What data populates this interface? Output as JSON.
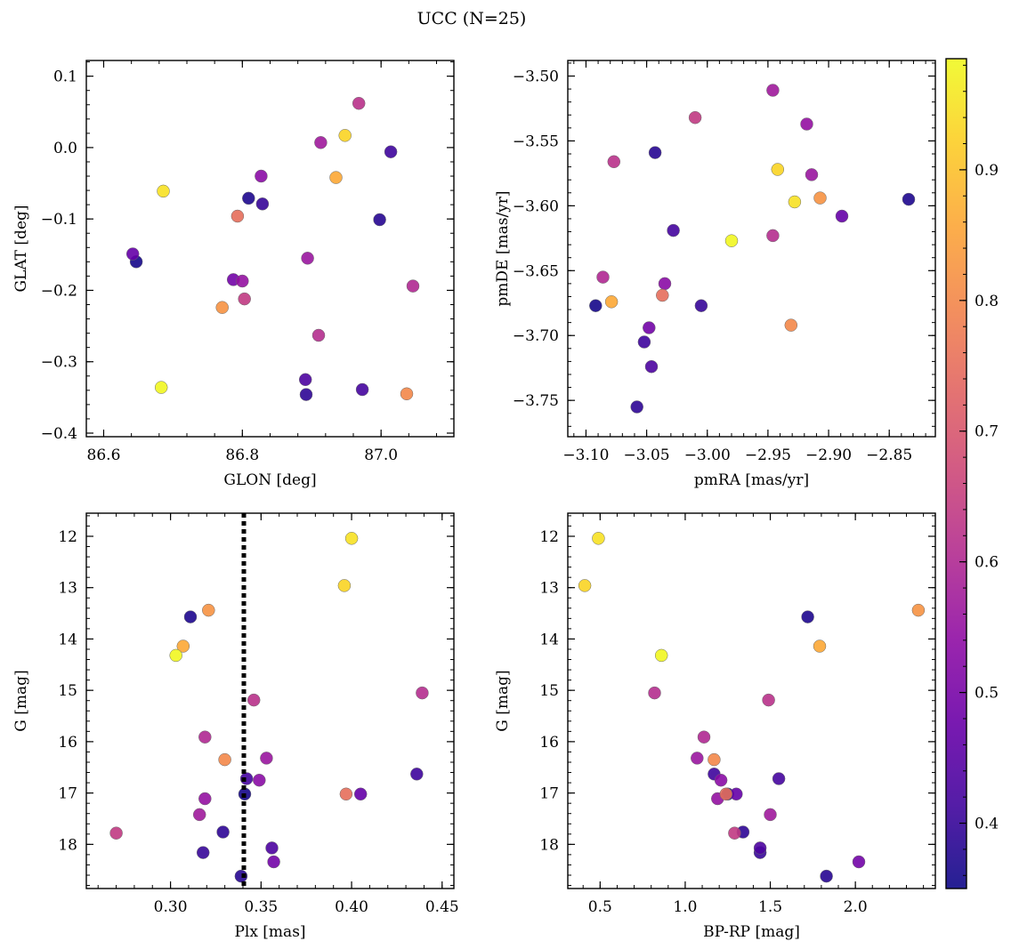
{
  "figure": {
    "title": "UCC (N=25)"
  },
  "colorbar": {
    "range": [
      0.35,
      0.985
    ],
    "ticks": [
      "0.4",
      "0.5",
      "0.6",
      "0.7",
      "0.8",
      "0.9"
    ],
    "tick_values": [
      0.4,
      0.5,
      0.6,
      0.7,
      0.8,
      0.9
    ],
    "colormap": "plasma"
  },
  "stars": [
    {
      "glon": 86.683,
      "glat": -0.336,
      "pmra": -2.98,
      "pmde": -3.627,
      "plx": 0.303,
      "g": 14.32,
      "bprp": 0.86,
      "p": 0.98
    },
    {
      "glon": 86.948,
      "glat": 0.017,
      "pmra": -2.942,
      "pmde": -3.572,
      "plx": 0.396,
      "g": 12.96,
      "bprp": 0.41,
      "p": 0.93
    },
    {
      "glon": 86.686,
      "glat": -0.061,
      "pmra": -2.928,
      "pmde": -3.597,
      "plx": 0.4,
      "g": 12.04,
      "bprp": 0.49,
      "p": 0.95
    },
    {
      "glon": 86.935,
      "glat": -0.042,
      "pmra": -3.079,
      "pmde": -3.674,
      "plx": 0.307,
      "g": 14.14,
      "bprp": 1.79,
      "p": 0.86
    },
    {
      "glon": 86.771,
      "glat": -0.224,
      "pmra": -2.907,
      "pmde": -3.594,
      "plx": 0.321,
      "g": 13.44,
      "bprp": 2.37,
      "p": 0.82
    },
    {
      "glon": 87.037,
      "glat": -0.345,
      "pmra": -2.931,
      "pmde": -3.692,
      "plx": 0.33,
      "g": 16.35,
      "bprp": 1.17,
      "p": 0.8
    },
    {
      "glon": 86.793,
      "glat": -0.096,
      "pmra": -3.037,
      "pmde": -3.669,
      "plx": 0.397,
      "g": 17.02,
      "bprp": 1.24,
      "p": 0.75
    },
    {
      "glon": 86.803,
      "glat": -0.212,
      "pmra": -3.01,
      "pmde": -3.532,
      "plx": 0.27,
      "g": 17.78,
      "bprp": 1.29,
      "p": 0.64
    },
    {
      "glon": 86.968,
      "glat": 0.062,
      "pmra": -3.077,
      "pmde": -3.566,
      "plx": 0.346,
      "g": 15.19,
      "bprp": 1.49,
      "p": 0.62
    },
    {
      "glon": 86.91,
      "glat": -0.263,
      "pmra": -2.946,
      "pmde": -3.623,
      "plx": 0.439,
      "g": 15.05,
      "bprp": 0.82,
      "p": 0.61
    },
    {
      "glon": 87.046,
      "glat": -0.194,
      "pmra": -3.086,
      "pmde": -3.655,
      "plx": 0.319,
      "g": 15.91,
      "bprp": 1.11,
      "p": 0.6
    },
    {
      "glon": 86.913,
      "glat": 0.007,
      "pmra": -2.946,
      "pmde": -3.511,
      "plx": 0.316,
      "g": 17.42,
      "bprp": 1.5,
      "p": 0.57
    },
    {
      "glon": 86.894,
      "glat": -0.155,
      "pmra": -2.914,
      "pmde": -3.576,
      "plx": 0.353,
      "g": 16.32,
      "bprp": 1.07,
      "p": 0.56
    },
    {
      "glon": 86.8,
      "glat": -0.187,
      "pmra": -2.918,
      "pmde": -3.537,
      "plx": 0.319,
      "g": 17.11,
      "bprp": 1.19,
      "p": 0.55
    },
    {
      "glon": 86.827,
      "glat": -0.04,
      "pmra": -3.035,
      "pmde": -3.66,
      "plx": 0.349,
      "g": 16.75,
      "bprp": 1.21,
      "p": 0.53
    },
    {
      "glon": 86.787,
      "glat": -0.185,
      "pmra": -3.048,
      "pmde": -3.694,
      "plx": 0.357,
      "g": 18.34,
      "bprp": 2.02,
      "p": 0.49
    },
    {
      "glon": 86.642,
      "glat": -0.149,
      "pmra": -2.889,
      "pmde": -3.608,
      "plx": 0.405,
      "g": 17.02,
      "bprp": 1.3,
      "p": 0.47
    },
    {
      "glon": 86.891,
      "glat": -0.325,
      "pmra": -3.046,
      "pmde": -3.724,
      "plx": 0.356,
      "g": 18.07,
      "bprp": 1.44,
      "p": 0.43
    },
    {
      "glon": 86.973,
      "glat": -0.339,
      "pmra": -3.028,
      "pmde": -3.619,
      "plx": 0.342,
      "g": 16.72,
      "bprp": 1.55,
      "p": 0.42
    },
    {
      "glon": 87.014,
      "glat": -0.006,
      "pmra": -3.052,
      "pmde": -3.705,
      "plx": 0.436,
      "g": 16.63,
      "bprp": 1.17,
      "p": 0.41
    },
    {
      "glon": 86.829,
      "glat": -0.079,
      "pmra": -3.005,
      "pmde": -3.677,
      "plx": 0.318,
      "g": 18.16,
      "bprp": 1.44,
      "p": 0.4
    },
    {
      "glon": 86.892,
      "glat": -0.346,
      "pmra": -3.058,
      "pmde": -3.755,
      "plx": 0.329,
      "g": 17.76,
      "bprp": 1.34,
      "p": 0.39
    },
    {
      "glon": 86.998,
      "glat": -0.101,
      "pmra": -3.043,
      "pmde": -3.559,
      "plx": 0.339,
      "g": 18.62,
      "bprp": 1.83,
      "p": 0.38
    },
    {
      "glon": 86.809,
      "glat": -0.071,
      "pmra": -2.834,
      "pmde": -3.595,
      "plx": 0.311,
      "g": 13.57,
      "bprp": 1.72,
      "p": 0.37
    },
    {
      "glon": 86.647,
      "glat": -0.16,
      "pmra": -3.092,
      "pmde": -3.677,
      "plx": 0.341,
      "g": 17.02,
      "bprp": 1.25,
      "p": 0.36
    }
  ],
  "chart_data": [
    {
      "type": "scatter",
      "xkey": "glon",
      "ykey": "glat",
      "xlabel": "GLON [deg]",
      "ylabel": "GLAT [deg]",
      "xlim": [
        86.575,
        87.105
      ],
      "ylim": [
        -0.405,
        0.122
      ],
      "xticks": [
        86.6,
        86.8,
        87.0
      ],
      "xticklabels": [
        "86.6",
        "86.8",
        "87.0"
      ],
      "yticks": [
        0.1,
        0.0,
        -0.1,
        -0.2,
        -0.3,
        -0.4
      ],
      "yticklabels": [
        "0.1",
        "0.0",
        "−0.1",
        "−0.2",
        "−0.3",
        "−0.4"
      ],
      "invert_y": false,
      "vline": null
    },
    {
      "type": "scatter",
      "xkey": "pmra",
      "ykey": "pmde",
      "xlabel": "pmRA [mas/yr]",
      "ylabel": "pmDE [mas/yr]",
      "xlim": [
        -3.115,
        -2.812
      ],
      "ylim": [
        -3.778,
        -3.488
      ],
      "xticks": [
        -3.1,
        -3.05,
        -3.0,
        -2.95,
        -2.9,
        -2.85
      ],
      "xticklabels": [
        "−3.10",
        "−3.05",
        "−3.00",
        "−2.95",
        "−2.90",
        "−2.85"
      ],
      "yticks": [
        -3.5,
        -3.55,
        -3.6,
        -3.65,
        -3.7,
        -3.75
      ],
      "yticklabels": [
        "−3.50",
        "−3.55",
        "−3.60",
        "−3.65",
        "−3.70",
        "−3.75"
      ],
      "invert_y": false,
      "vline": null
    },
    {
      "type": "scatter",
      "xkey": "plx",
      "ykey": "g",
      "xlabel": "Plx [mas]",
      "ylabel": "G [mag]",
      "xlim": [
        0.2535,
        0.4565
      ],
      "ylim": [
        11.55,
        18.86
      ],
      "xticks": [
        0.3,
        0.35,
        0.4,
        0.45
      ],
      "xticklabels": [
        "0.30",
        "0.35",
        "0.40",
        "0.45"
      ],
      "yticks": [
        12,
        13,
        14,
        15,
        16,
        17,
        18
      ],
      "yticklabels": [
        "12",
        "13",
        "14",
        "15",
        "16",
        "17",
        "18"
      ],
      "invert_y": true,
      "vline": 0.3405
    },
    {
      "type": "scatter",
      "xkey": "bprp",
      "ykey": "g",
      "xlabel": "BP-RP [mag]",
      "ylabel": "G [mag]",
      "xlim": [
        0.31,
        2.47
      ],
      "ylim": [
        11.55,
        18.86
      ],
      "xticks": [
        0.5,
        1.0,
        1.5,
        2.0
      ],
      "xticklabels": [
        "0.5",
        "1.0",
        "1.5",
        "2.0"
      ],
      "yticks": [
        12,
        13,
        14,
        15,
        16,
        17,
        18
      ],
      "yticklabels": [
        "12",
        "13",
        "14",
        "15",
        "16",
        "17",
        "18"
      ],
      "invert_y": true,
      "vline": null
    }
  ]
}
